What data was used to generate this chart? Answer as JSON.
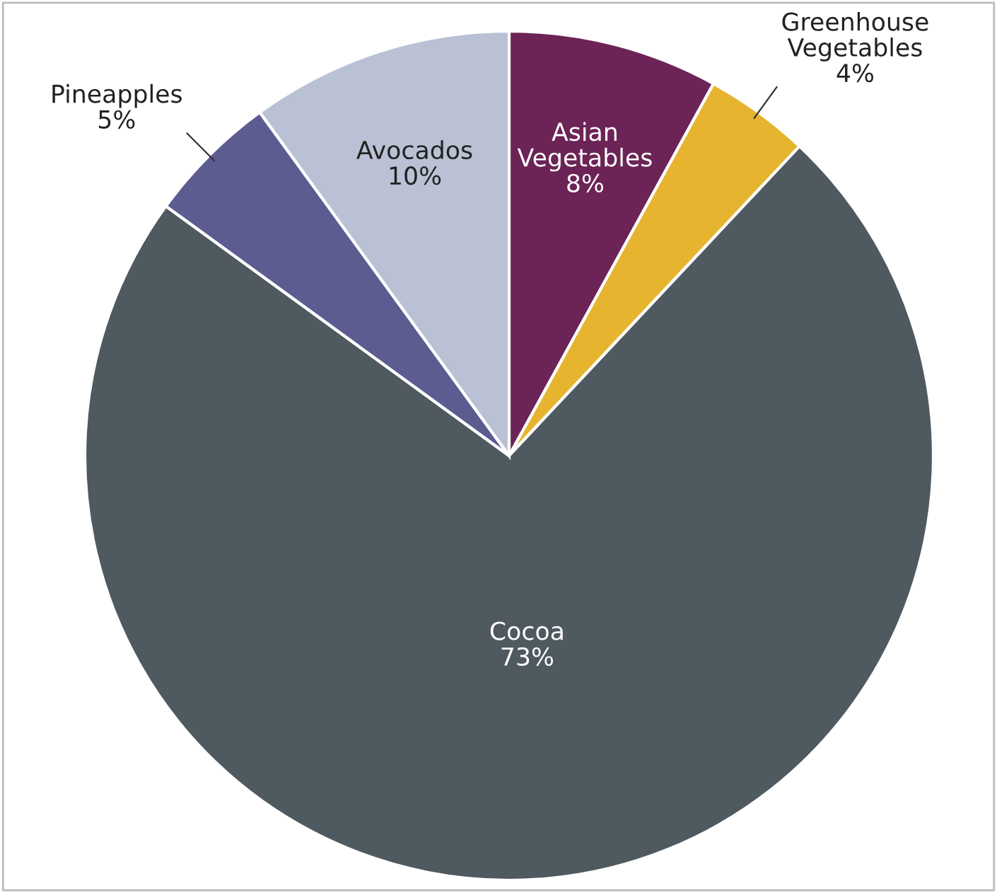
{
  "chart_data": {
    "type": "pie",
    "categories": [
      "Asian Vegetables",
      "Greenhouse Vegetables",
      "Cocoa",
      "Pineapples",
      "Avocados"
    ],
    "values": [
      8,
      4,
      73,
      5,
      10
    ],
    "value_labels": [
      "8%",
      "4%",
      "73%",
      "5%",
      "10%"
    ],
    "colors": [
      "#6b2455",
      "#e6b42e",
      "#4f5960",
      "#5c5c91",
      "#bac1d4"
    ]
  }
}
